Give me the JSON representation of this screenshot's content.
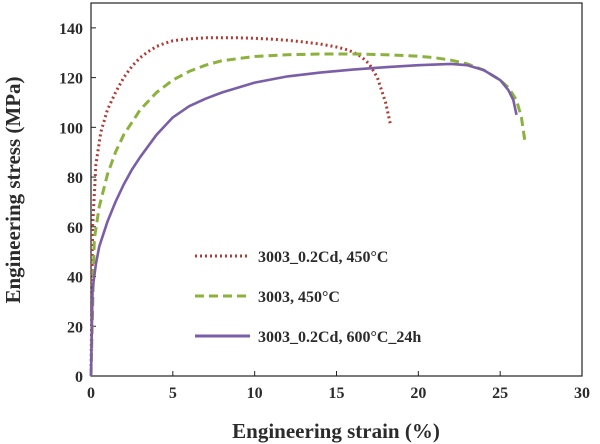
{
  "chart_data": {
    "type": "line",
    "title": "",
    "xlabel": "Engineering strain (%)",
    "ylabel": "Engineering stress (MPa)",
    "xlim": [
      0,
      30
    ],
    "ylim": [
      0,
      150
    ],
    "xticks": [
      0,
      5,
      10,
      15,
      20,
      25,
      30
    ],
    "yticks": [
      0,
      20,
      40,
      60,
      80,
      100,
      120,
      140
    ],
    "grid": false,
    "legend_position": "center-left",
    "series": [
      {
        "name": "3003_0.2Cd, 450°C",
        "color": "#b23a32",
        "style": "dotted",
        "x": [
          0,
          0.1,
          0.3,
          0.6,
          1,
          1.5,
          2,
          2.5,
          3,
          3.5,
          4,
          4.5,
          5,
          6,
          7,
          8,
          9,
          10,
          11,
          12,
          13,
          14,
          15,
          15.5,
          16,
          16.5,
          17,
          17.5,
          18,
          18.2,
          18.3
        ],
        "y": [
          0,
          60,
          85,
          98,
          107,
          114,
          120,
          124.5,
          128,
          130.5,
          132.5,
          133.8,
          134.8,
          135.6,
          136,
          136,
          136,
          135.8,
          135.5,
          135,
          134.3,
          133.5,
          132.3,
          131.5,
          130.3,
          128.5,
          125.5,
          120,
          110,
          104,
          101
        ]
      },
      {
        "name": "3003, 450°C",
        "color": "#8cb23e",
        "style": "dashed",
        "x": [
          0,
          0.2,
          0.5,
          1,
          1.5,
          2,
          2.5,
          3,
          4,
          5,
          6,
          7,
          8,
          10,
          12,
          14,
          16,
          18,
          20,
          21,
          22,
          23,
          24,
          25,
          25.5,
          26,
          26.3,
          26.5
        ],
        "y": [
          0,
          55,
          68,
          81,
          90,
          97,
          102,
          107,
          114,
          119,
          122.5,
          125,
          126.8,
          128.5,
          129.2,
          129.5,
          129.5,
          129.2,
          128.6,
          128,
          127,
          125.5,
          123,
          119,
          116,
          111,
          104,
          95
        ]
      },
      {
        "name": "3003_0.2Cd, 600°C_24h",
        "color": "#7a5ea8",
        "style": "solid",
        "x": [
          0,
          0.1,
          0.3,
          0.5,
          1,
          1.5,
          2,
          2.5,
          3,
          4,
          5,
          6,
          7,
          8,
          10,
          12,
          14,
          16,
          18,
          20,
          22,
          23,
          24,
          25,
          25.5,
          25.8,
          26
        ],
        "y": [
          0,
          35,
          45,
          52,
          62,
          70,
          77,
          83,
          88,
          97,
          104,
          108.5,
          111.5,
          114,
          118,
          120.5,
          122,
          123.2,
          124.2,
          125,
          125.5,
          125,
          123,
          119,
          115,
          111,
          105
        ]
      }
    ]
  }
}
